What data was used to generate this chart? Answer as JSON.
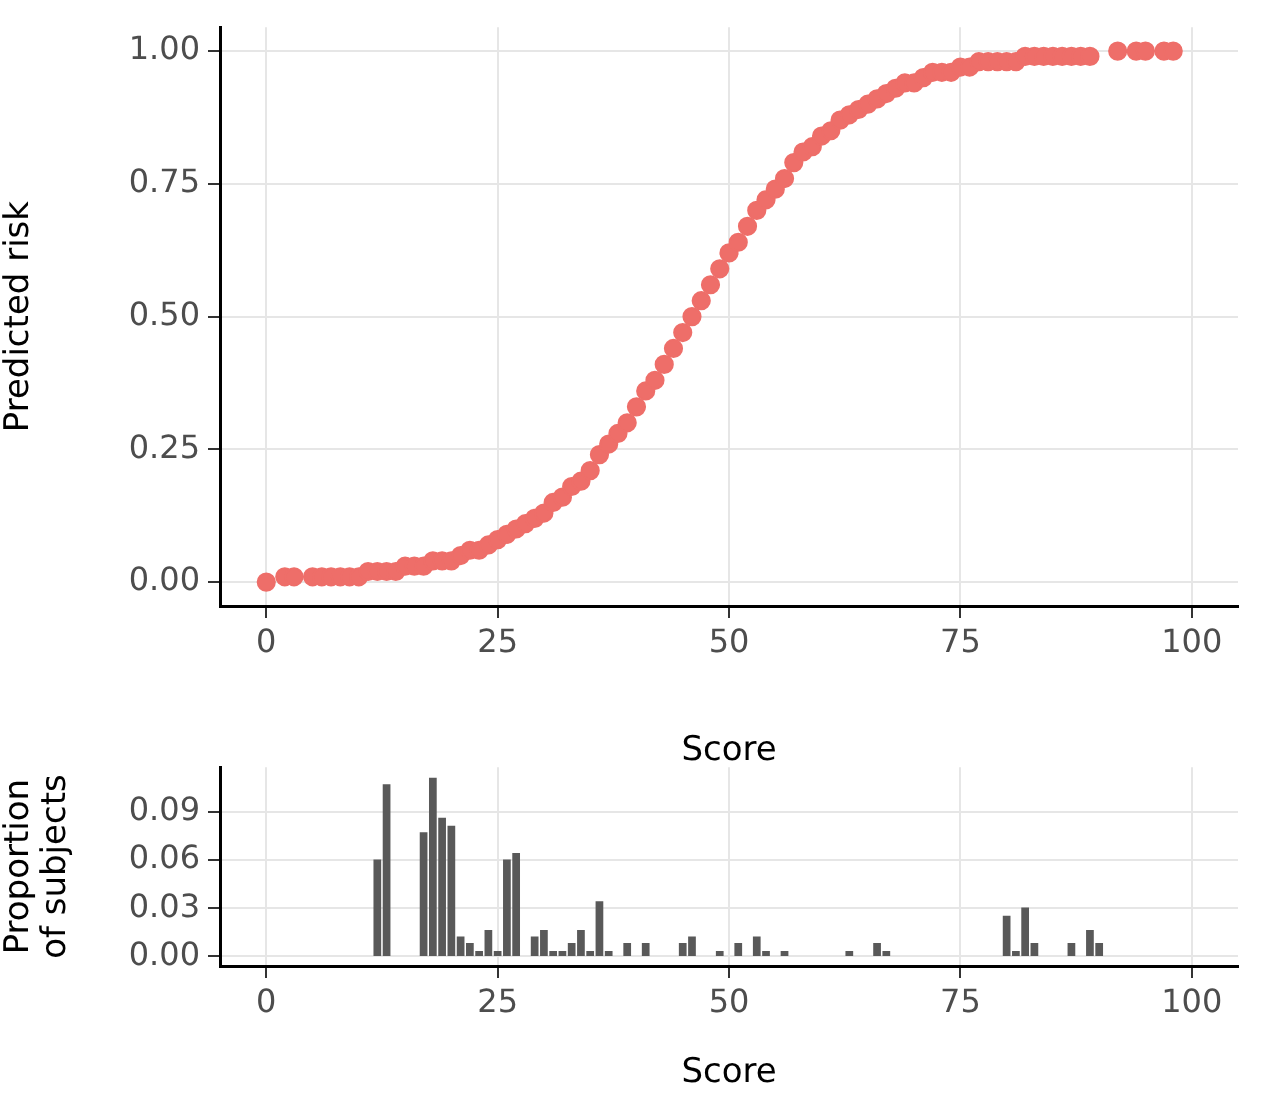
{
  "chart_data": [
    {
      "type": "scatter",
      "marker": "circle",
      "color": "#ee6e69",
      "xlabel": "Score",
      "ylabel": "Predicted risk",
      "grid": true,
      "x": [
        0,
        2,
        3,
        5,
        6,
        7,
        8,
        9,
        10,
        11,
        12,
        13,
        14,
        15,
        16,
        17,
        18,
        19,
        20,
        21,
        22,
        23,
        24,
        25,
        26,
        27,
        28,
        29,
        30,
        31,
        32,
        33,
        34,
        35,
        36,
        37,
        38,
        39,
        40,
        41,
        42,
        43,
        44,
        45,
        46,
        47,
        48,
        49,
        50,
        51,
        52,
        53,
        54,
        55,
        56,
        57,
        58,
        59,
        60,
        61,
        62,
        63,
        64,
        65,
        66,
        67,
        68,
        69,
        70,
        71,
        72,
        73,
        74,
        75,
        76,
        77,
        78,
        79,
        80,
        81,
        82,
        83,
        84,
        85,
        86,
        87,
        88,
        89,
        92,
        94,
        95,
        97,
        98
      ],
      "values": [
        0.0,
        0.01,
        0.01,
        0.01,
        0.01,
        0.01,
        0.01,
        0.01,
        0.01,
        0.02,
        0.02,
        0.02,
        0.02,
        0.03,
        0.03,
        0.03,
        0.04,
        0.04,
        0.04,
        0.05,
        0.06,
        0.06,
        0.07,
        0.08,
        0.09,
        0.1,
        0.11,
        0.12,
        0.13,
        0.15,
        0.16,
        0.18,
        0.19,
        0.21,
        0.24,
        0.26,
        0.28,
        0.3,
        0.33,
        0.36,
        0.38,
        0.41,
        0.44,
        0.47,
        0.5,
        0.53,
        0.56,
        0.59,
        0.62,
        0.64,
        0.67,
        0.7,
        0.72,
        0.74,
        0.76,
        0.79,
        0.81,
        0.82,
        0.84,
        0.85,
        0.87,
        0.88,
        0.89,
        0.9,
        0.91,
        0.92,
        0.93,
        0.94,
        0.94,
        0.95,
        0.96,
        0.96,
        0.96,
        0.97,
        0.97,
        0.98,
        0.98,
        0.98,
        0.98,
        0.98,
        0.99,
        0.99,
        0.99,
        0.99,
        0.99,
        0.99,
        0.99,
        0.99,
        1.0,
        1.0,
        1.0,
        1.0,
        1.0
      ],
      "xlim": [
        -5,
        105
      ],
      "xticks": [
        0,
        25,
        50,
        75,
        100
      ],
      "ylim": [
        -0.045,
        1.045
      ],
      "yticks": [
        {
          "value": 0,
          "label": "0.00"
        },
        {
          "value": 0.25,
          "label": "0.25"
        },
        {
          "value": 0.5,
          "label": "0.50"
        },
        {
          "value": 0.75,
          "label": "0.75"
        },
        {
          "value": 1,
          "label": "1.00"
        }
      ]
    },
    {
      "type": "bar",
      "color": "#595959",
      "xlabel": "Score",
      "ylabel": "Proportion of subjects",
      "grid": true,
      "x": [
        12,
        13,
        17,
        18,
        19,
        20,
        21,
        22,
        23,
        24,
        25,
        26,
        27,
        29,
        30,
        31,
        32,
        33,
        34,
        35,
        36,
        37,
        39,
        41,
        45,
        46,
        49,
        51,
        53,
        54,
        56,
        63,
        66,
        67,
        80,
        81,
        82,
        83,
        87,
        89,
        90
      ],
      "values": [
        0.06,
        0.107,
        0.077,
        0.111,
        0.086,
        0.081,
        0.012,
        0.008,
        0.003,
        0.016,
        0.003,
        0.06,
        0.064,
        0.012,
        0.016,
        0.003,
        0.003,
        0.008,
        0.016,
        0.003,
        0.034,
        0.003,
        0.008,
        0.008,
        0.008,
        0.012,
        0.003,
        0.008,
        0.012,
        0.003,
        0.003,
        0.003,
        0.008,
        0.003,
        0.025,
        0.003,
        0.03,
        0.008,
        0.008,
        0.016,
        0.008
      ],
      "xlim": [
        -5,
        105
      ],
      "xticks": [
        0,
        25,
        50,
        75,
        100
      ],
      "ylim": [
        -0.006,
        0.118
      ],
      "yticks": [
        {
          "value": 0,
          "label": "0.00"
        },
        {
          "value": 0.03,
          "label": "0.03"
        },
        {
          "value": 0.06,
          "label": "0.06"
        },
        {
          "value": 0.09,
          "label": "0.09"
        }
      ]
    }
  ]
}
